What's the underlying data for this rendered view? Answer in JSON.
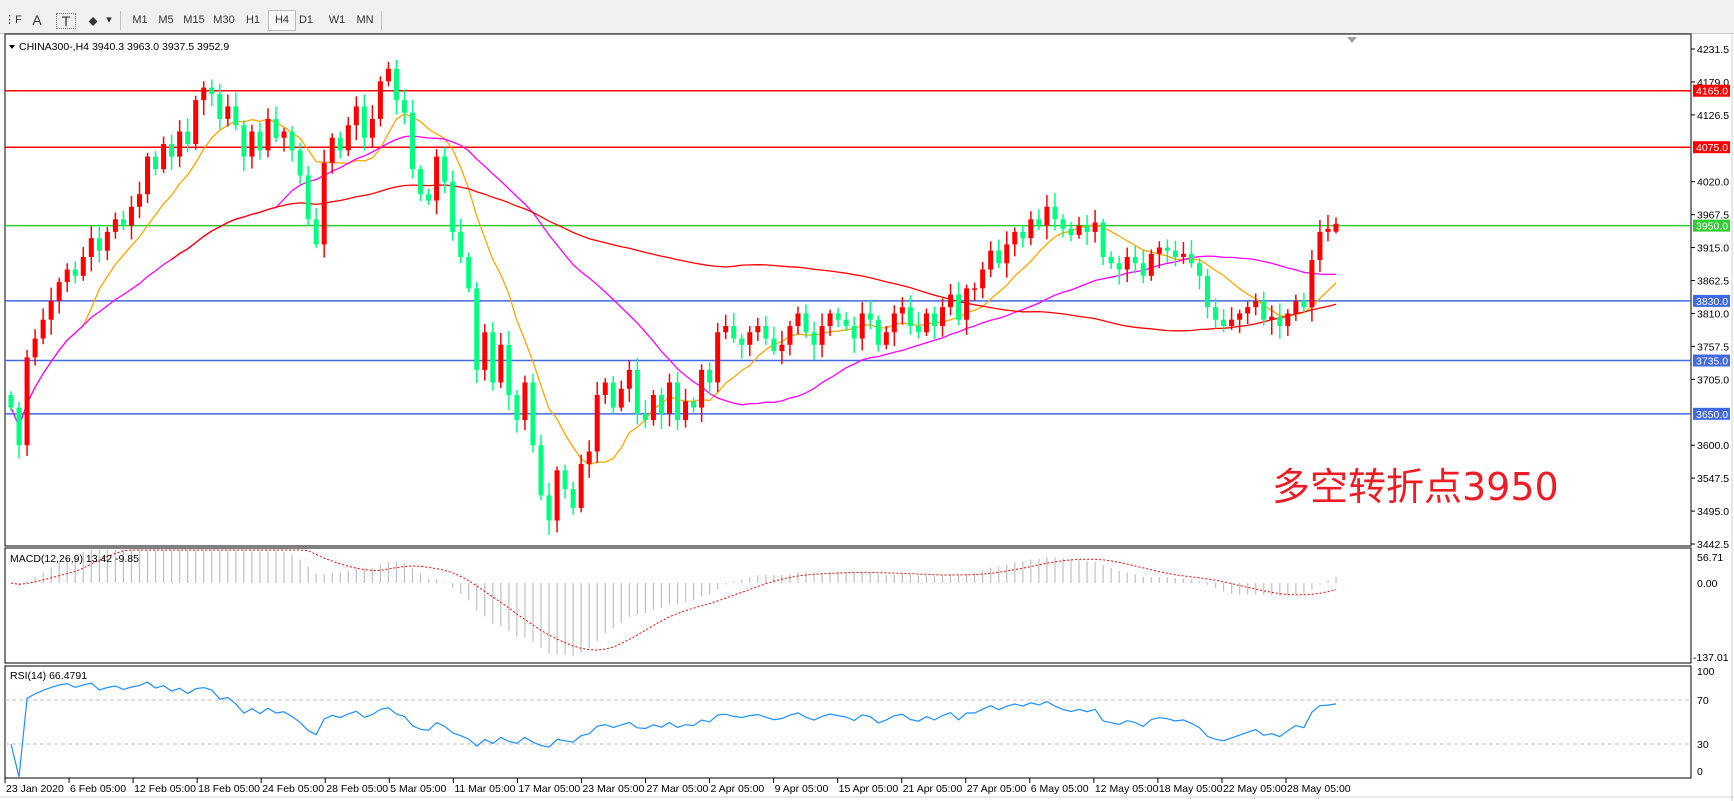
{
  "toolbar": {
    "tools": [
      {
        "name": "period-separators-icon",
        "glyph": "⋮F"
      },
      {
        "name": "text-tool-icon",
        "glyph": "A"
      },
      {
        "name": "text-label-tool-icon",
        "glyph": "T"
      },
      {
        "name": "shapes-tool-icon",
        "glyph": "⬥"
      },
      {
        "name": "dropdown-arrow-icon",
        "glyph": "▾"
      }
    ],
    "timeframes": [
      "M1",
      "M5",
      "M15",
      "M30",
      "H1",
      "H4",
      "D1",
      "W1",
      "MN"
    ],
    "selected_timeframe": "H4"
  },
  "chart": {
    "header": "CHINA300-,H4  3940.3 3963.0 3937.5 3952.9",
    "price_axis": [
      "4231.5",
      "4179.0",
      "4126.5",
      "4020.0",
      "3967.5",
      "3915.0",
      "3862.5",
      "3810.0",
      "3757.5",
      "3705.0",
      "3600.0",
      "3547.5",
      "3495.0",
      "3442.5"
    ],
    "levels": [
      {
        "price": "4165.0",
        "color": "#ff0000"
      },
      {
        "price": "4075.0",
        "color": "#ff0000"
      },
      {
        "price": "3950.0",
        "color": "#32cd32"
      },
      {
        "price": "3830.0",
        "color": "#4169e1"
      },
      {
        "price": "3735.0",
        "color": "#4169e1"
      },
      {
        "price": "3650.0",
        "color": "#4169e1"
      }
    ],
    "annotation": "多空转折点3950",
    "colors": {
      "up": "#ff0000",
      "down": "#00ff7f",
      "ma_fast": "#ffa500",
      "ma_mid": "#ff00ff",
      "ma_slow": "#ff0000"
    },
    "closes": [
      3660,
      3600,
      3740,
      3770,
      3800,
      3830,
      3860,
      3880,
      3870,
      3900,
      3930,
      3910,
      3940,
      3960,
      3950,
      3980,
      4000,
      4060,
      4040,
      4080,
      4060,
      4100,
      4080,
      4150,
      4170,
      4160,
      4120,
      4140,
      4110,
      4060,
      4100,
      4070,
      4120,
      4090,
      4100,
      4070,
      4030,
      3960,
      3920,
      4050,
      4090,
      4070,
      4110,
      4140,
      4090,
      4120,
      4180,
      4200,
      4150,
      4130,
      4040,
      4000,
      3990,
      4060,
      4020,
      3940,
      3900,
      3850,
      3720,
      3780,
      3700,
      3760,
      3680,
      3640,
      3700,
      3600,
      3520,
      3480,
      3560,
      3530,
      3500,
      3570,
      3590,
      3680,
      3700,
      3660,
      3690,
      3720,
      3650,
      3640,
      3680,
      3650,
      3700,
      3640,
      3670,
      3660,
      3720,
      3700,
      3780,
      3790,
      3770,
      3760,
      3780,
      3790,
      3770,
      3750,
      3760,
      3790,
      3810,
      3780,
      3760,
      3790,
      3810,
      3800,
      3790,
      3770,
      3810,
      3800,
      3760,
      3780,
      3810,
      3820,
      3790,
      3780,
      3810,
      3790,
      3820,
      3840,
      3800,
      3850,
      3850,
      3880,
      3910,
      3890,
      3920,
      3940,
      3930,
      3960,
      3950,
      3980,
      3960,
      3945,
      3935,
      3950,
      3940,
      3955,
      3900,
      3890,
      3880,
      3900,
      3890,
      3870,
      3905,
      3915,
      3910,
      3900,
      3905,
      3890,
      3870,
      3820,
      3800,
      3790,
      3800,
      3810,
      3820,
      3830,
      3800,
      3805,
      3790,
      3810,
      3830,
      3820,
      3895,
      3940,
      3945,
      3952.9
    ]
  },
  "macd": {
    "label": "MACD(12,26,9) 13.42 -9.85",
    "axis": [
      "56.71",
      "0.00",
      "-137.01"
    ],
    "hist_color": "#c0c0c0",
    "signal_color": "#ff0000"
  },
  "rsi": {
    "label": "RSI(14) 66.4791",
    "axis": [
      "100",
      "70",
      "30",
      "0"
    ],
    "color": "#1e90ff"
  },
  "time_axis": [
    "23 Jan 2020",
    "6 Feb 05:00",
    "12 Feb 05:00",
    "18 Feb 05:00",
    "24 Feb 05:00",
    "28 Feb 05:00",
    "5 Mar 05:00",
    "11 Mar 05:00",
    "17 Mar 05:00",
    "23 Mar 05:00",
    "27 Mar 05:00",
    "2 Apr 05:00",
    "9 Apr 05:00",
    "15 Apr 05:00",
    "21 Apr 05:00",
    "27 Apr 05:00",
    "6 May 05:00",
    "12 May 05:00",
    "18 May 05:00",
    "22 May 05:00",
    "28 May 05:00"
  ]
}
